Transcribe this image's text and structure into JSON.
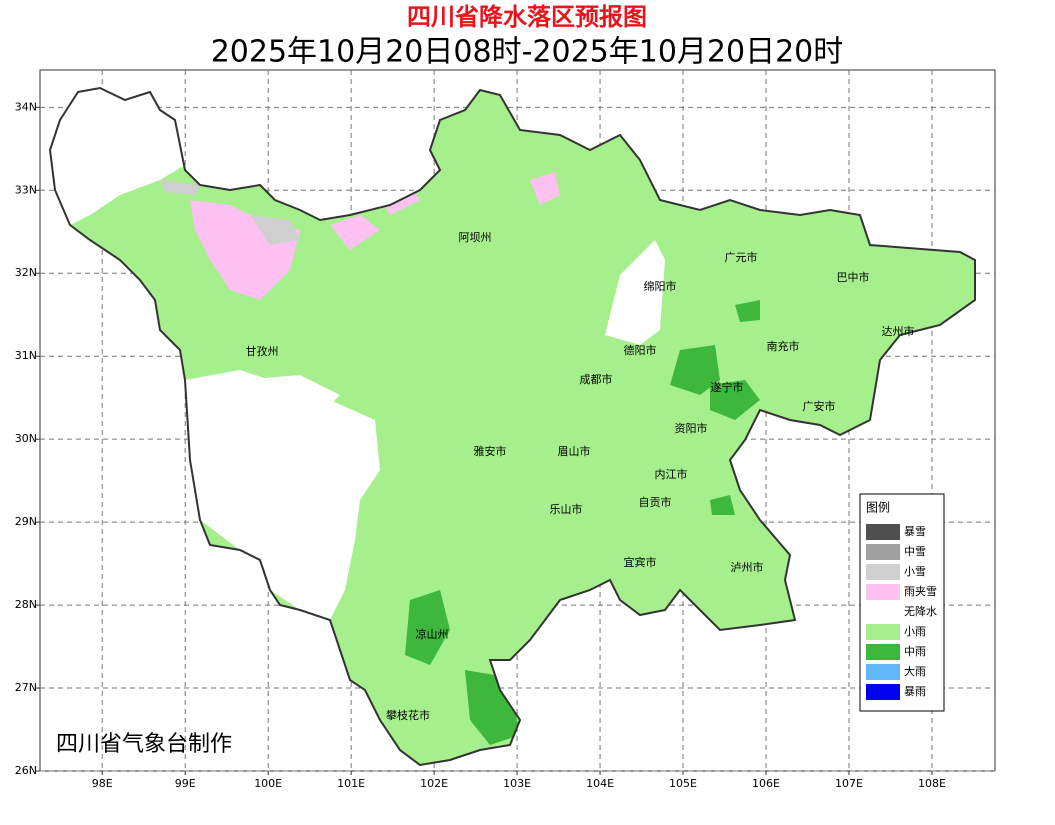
{
  "title": "四川省降水落区预报图",
  "subtitle": "2025年10月20日08时-2025年10月20日20时",
  "map": {
    "xlim": [
      97.25,
      108.76
    ],
    "ylim": [
      26,
      34.45
    ],
    "xticks": [
      {
        "value": 98,
        "label": "98E"
      },
      {
        "value": 99,
        "label": "99E"
      },
      {
        "value": 100,
        "label": "100E"
      },
      {
        "value": 101,
        "label": "101E"
      },
      {
        "value": 102,
        "label": "102E"
      },
      {
        "value": 103,
        "label": "103E"
      },
      {
        "value": 104,
        "label": "104E"
      },
      {
        "value": 105,
        "label": "105E"
      },
      {
        "value": 106,
        "label": "106E"
      },
      {
        "value": 107,
        "label": "107E"
      },
      {
        "value": 108,
        "label": "108E"
      }
    ],
    "yticks": [
      {
        "value": 26,
        "label": "26N"
      },
      {
        "value": 27,
        "label": "27N"
      },
      {
        "value": 28,
        "label": "28N"
      },
      {
        "value": 29,
        "label": "29N"
      },
      {
        "value": 30,
        "label": "30N"
      },
      {
        "value": 31,
        "label": "31N"
      },
      {
        "value": 32,
        "label": "32N"
      },
      {
        "value": 33,
        "label": "33N"
      },
      {
        "value": 34,
        "label": "34N"
      }
    ],
    "grid": true
  },
  "cities": [
    "阿坝州",
    "广元市",
    "巴中市",
    "绵阳市",
    "甘孜州",
    "德阳市",
    "南充市",
    "达州市",
    "成都市",
    "遂宁市",
    "广安市",
    "资阳市",
    "雅安市",
    "眉山市",
    "内江市",
    "乐山市",
    "自贡市",
    "宜宾市",
    "泸州市",
    "凉山州",
    "攀枝花市"
  ],
  "legend": {
    "title": "图例",
    "items": [
      {
        "label": "暴雪",
        "color": "#4f4f4f"
      },
      {
        "label": "中雪",
        "color": "#a0a0a0"
      },
      {
        "label": "小雪",
        "color": "#cfcfcf"
      },
      {
        "label": "雨夹雪",
        "color": "#ffc0f2"
      },
      {
        "label": "无降水",
        "color": "#ffffff"
      },
      {
        "label": "小雨",
        "color": "#a6ef8d"
      },
      {
        "label": "中雨",
        "color": "#3db83d"
      },
      {
        "label": "大雨",
        "color": "#62b7f9"
      },
      {
        "label": "暴雨",
        "color": "#0000f0"
      }
    ]
  },
  "credit": "四川省气象台制作"
}
